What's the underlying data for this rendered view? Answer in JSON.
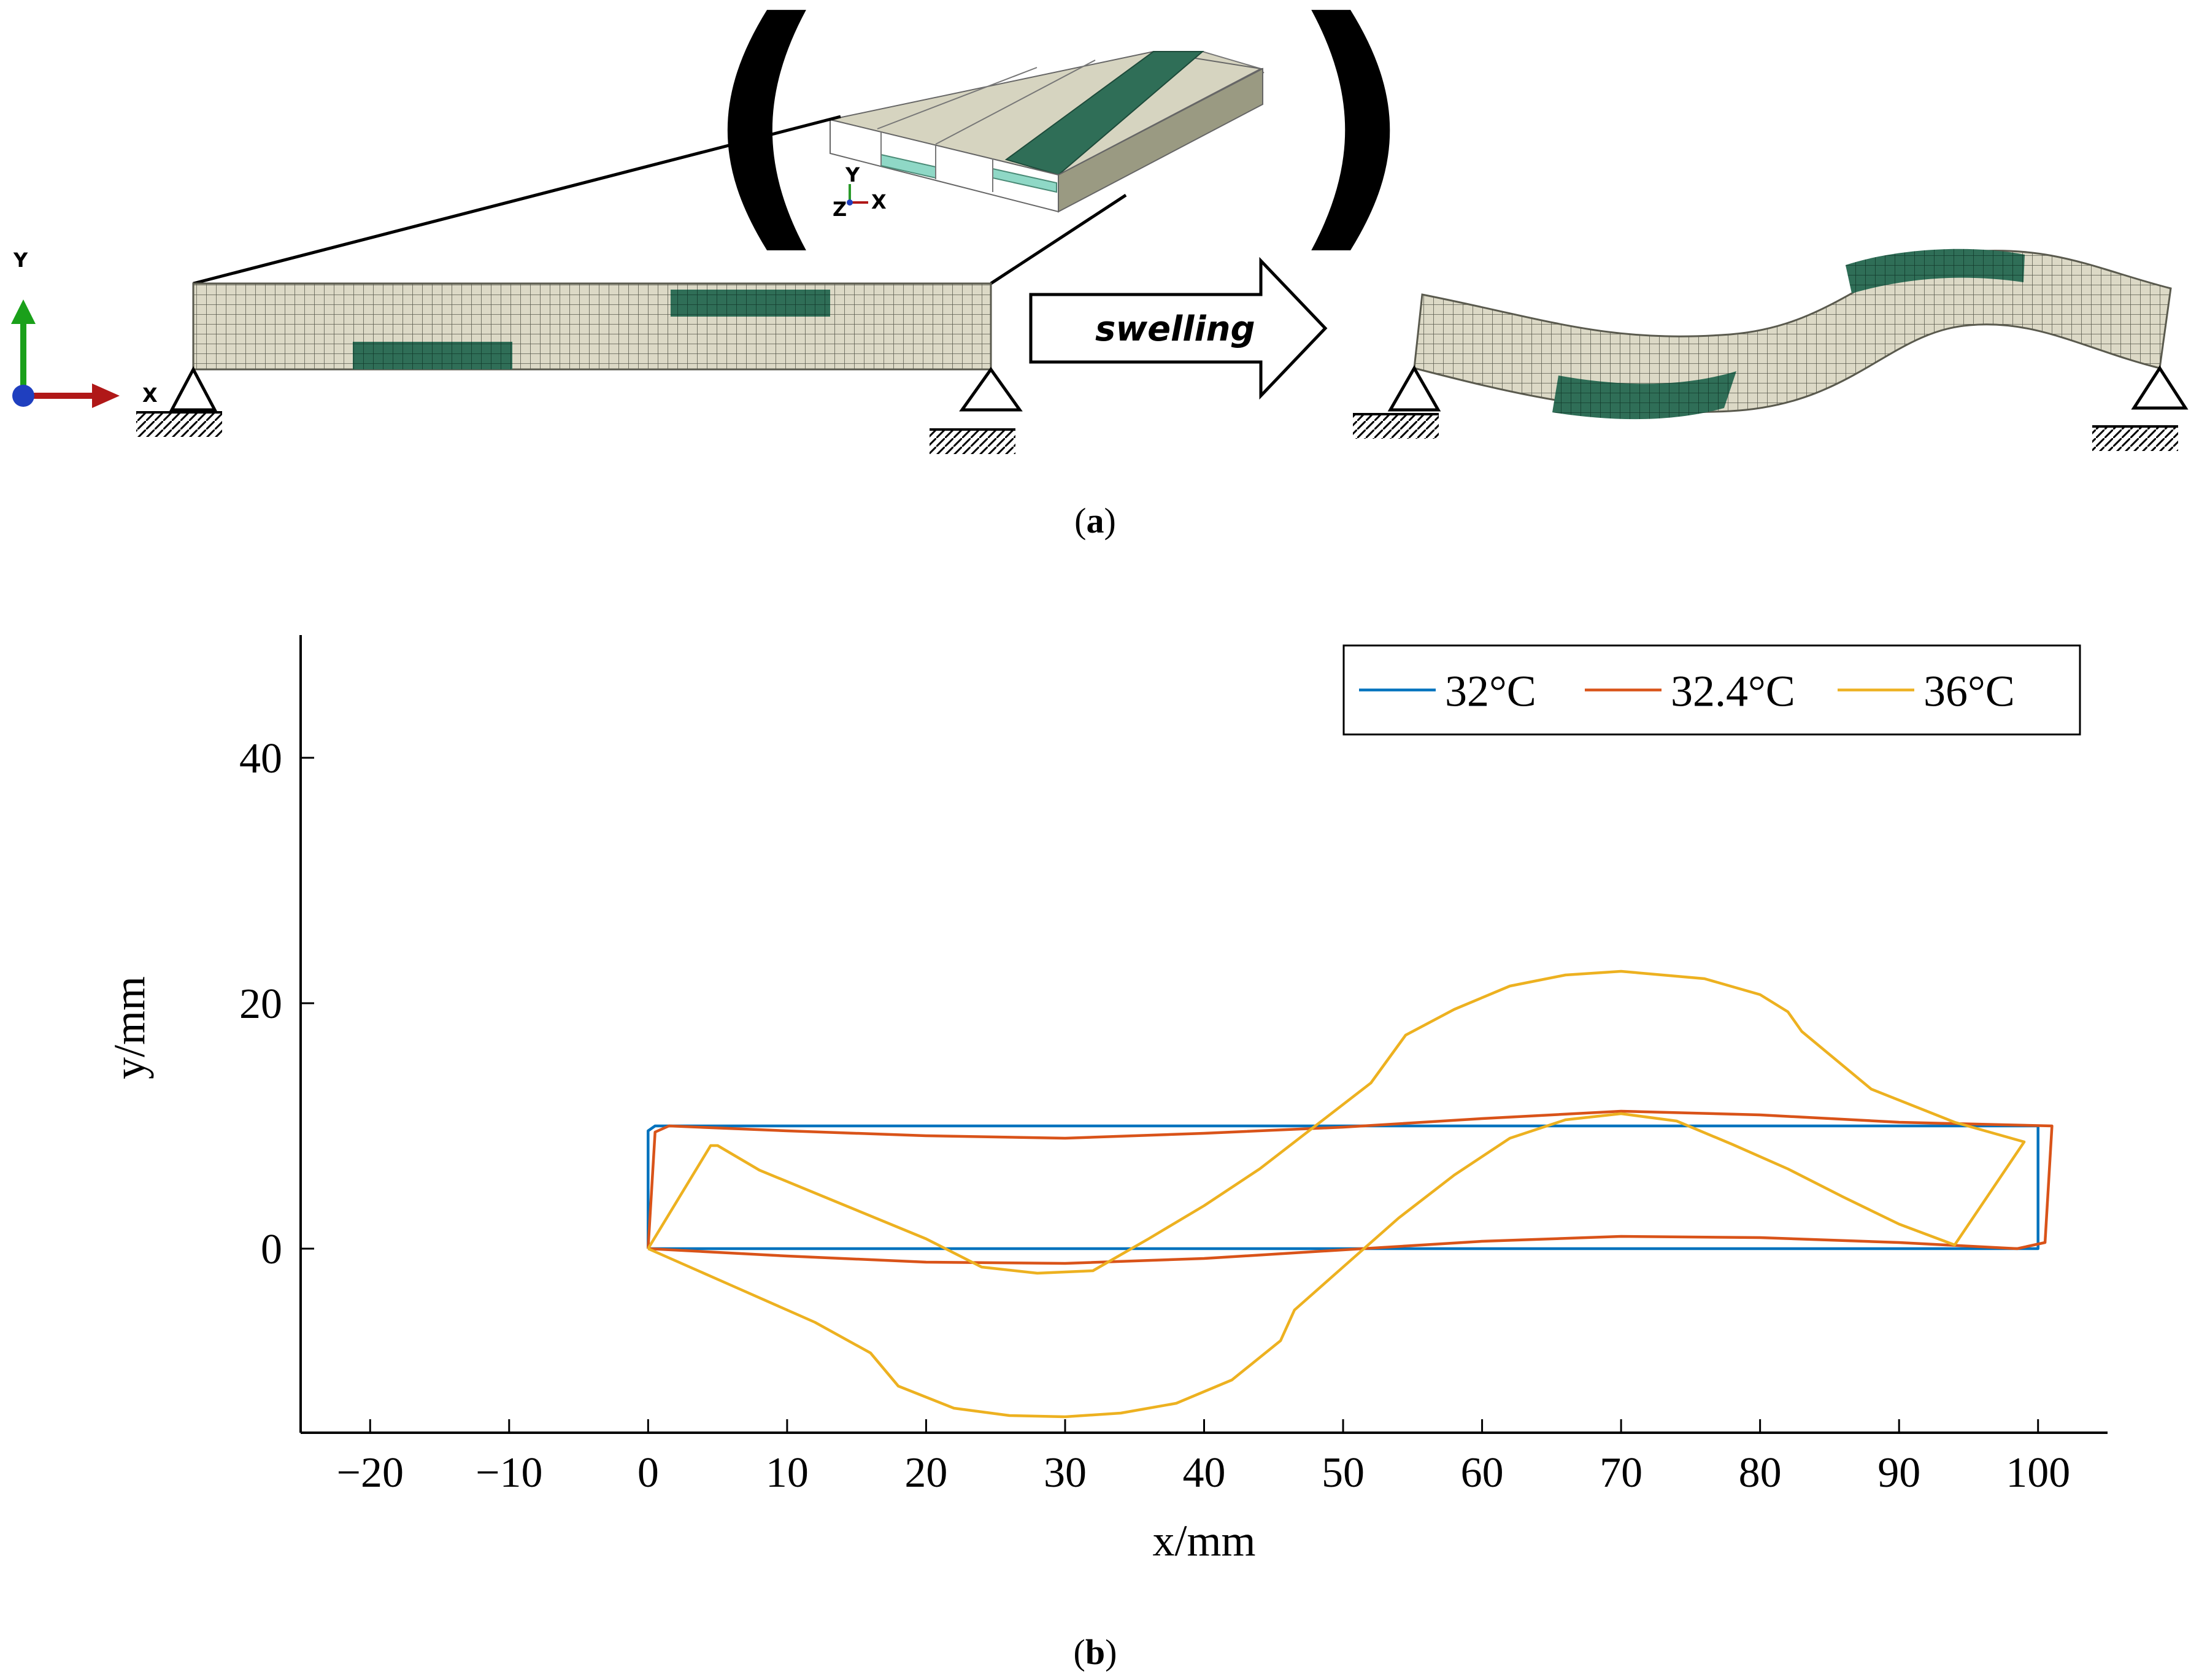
{
  "panel_a": {
    "caption_open": "(",
    "caption_letter": "a",
    "caption_close": ")",
    "arrow_label": "swelling",
    "axis_y_label": "Y",
    "axis_x_label": "X",
    "inset_axis_y": "Y",
    "inset_axis_x": "X",
    "inset_axis_z": "Z",
    "colors": {
      "beam": "#dcd9c6",
      "active": "#2f6e57",
      "active_light": "#8fd8c6",
      "mesh": "#5a5a4e"
    },
    "icons": [
      "pin-support-icon",
      "roller-support-icon",
      "coordinate-triad-icon",
      "arrow-right-icon"
    ]
  },
  "panel_b": {
    "caption_open": "(",
    "caption_letter": "b",
    "caption_close": ")"
  },
  "chart_data": {
    "type": "line",
    "title": "",
    "xlabel": "x/mm",
    "ylabel": "y/mm",
    "xlim": [
      -25,
      105
    ],
    "ylim": [
      -15,
      50
    ],
    "xticks": [
      -20,
      -10,
      0,
      10,
      20,
      30,
      40,
      50,
      60,
      70,
      80,
      90,
      100
    ],
    "xtick_labels": [
      "−20",
      "−10",
      "0",
      "10",
      "20",
      "30",
      "40",
      "50",
      "60",
      "70",
      "80",
      "90",
      "100"
    ],
    "yticks": [
      0,
      20,
      40
    ],
    "ytick_labels": [
      "0",
      "20",
      "40"
    ],
    "grid": false,
    "legend_position": "top-right",
    "series": [
      {
        "name": "32°C",
        "color": "#0072bd",
        "points": [
          [
            0,
            0
          ],
          [
            100,
            0
          ],
          [
            100,
            10
          ],
          [
            0.5,
            10
          ],
          [
            0,
            9.6
          ],
          [
            0,
            0
          ]
        ]
      },
      {
        "name": "32.4°C",
        "color": "#d95319",
        "points": [
          [
            0,
            0
          ],
          [
            10,
            -0.6
          ],
          [
            20,
            -1.1
          ],
          [
            30,
            -1.2
          ],
          [
            40,
            -0.8
          ],
          [
            50,
            -0.1
          ],
          [
            60,
            0.6
          ],
          [
            70,
            1.0
          ],
          [
            80,
            0.9
          ],
          [
            90,
            0.5
          ],
          [
            98.5,
            0
          ],
          [
            100.5,
            0.5
          ],
          [
            101,
            10
          ],
          [
            90,
            10.3
          ],
          [
            80,
            10.9
          ],
          [
            70,
            11.2
          ],
          [
            60,
            10.6
          ],
          [
            50,
            9.9
          ],
          [
            40,
            9.4
          ],
          [
            30,
            9.0
          ],
          [
            20,
            9.2
          ],
          [
            10,
            9.6
          ],
          [
            1.5,
            10
          ],
          [
            0.5,
            9.5
          ],
          [
            0,
            0
          ]
        ]
      },
      {
        "name": "36°C",
        "color": "#edb120",
        "points": [
          [
            0,
            0
          ],
          [
            6,
            -3
          ],
          [
            12,
            -6
          ],
          [
            16,
            -8.5
          ],
          [
            18,
            -11.2
          ],
          [
            22,
            -13
          ],
          [
            26,
            -13.6
          ],
          [
            30,
            -13.7
          ],
          [
            34,
            -13.4
          ],
          [
            38,
            -12.6
          ],
          [
            42,
            -10.7
          ],
          [
            45.5,
            -7.5
          ],
          [
            46.5,
            -5
          ],
          [
            50,
            -1.5
          ],
          [
            54,
            2.5
          ],
          [
            58,
            6
          ],
          [
            62,
            9
          ],
          [
            66,
            10.5
          ],
          [
            70,
            11
          ],
          [
            74,
            10.4
          ],
          [
            78,
            8.5
          ],
          [
            82,
            6.5
          ],
          [
            86,
            4.2
          ],
          [
            90,
            2
          ],
          [
            94,
            0.3
          ],
          [
            99,
            8.7
          ],
          [
            94,
            10.3
          ],
          [
            88,
            13
          ],
          [
            83,
            17.7
          ],
          [
            82,
            19.3
          ],
          [
            80,
            20.7
          ],
          [
            76,
            22
          ],
          [
            70,
            22.6
          ],
          [
            66,
            22.3
          ],
          [
            62,
            21.4
          ],
          [
            58,
            19.5
          ],
          [
            54.5,
            17.4
          ],
          [
            52,
            13.5
          ],
          [
            48,
            10
          ],
          [
            44,
            6.5
          ],
          [
            40,
            3.5
          ],
          [
            36,
            0.8
          ],
          [
            32,
            -1.8
          ],
          [
            28,
            -2
          ],
          [
            24,
            -1.5
          ],
          [
            20,
            0.8
          ],
          [
            14,
            3.6
          ],
          [
            8,
            6.4
          ],
          [
            5,
            8.4
          ],
          [
            4.5,
            8.4
          ],
          [
            0,
            0
          ]
        ]
      }
    ]
  }
}
